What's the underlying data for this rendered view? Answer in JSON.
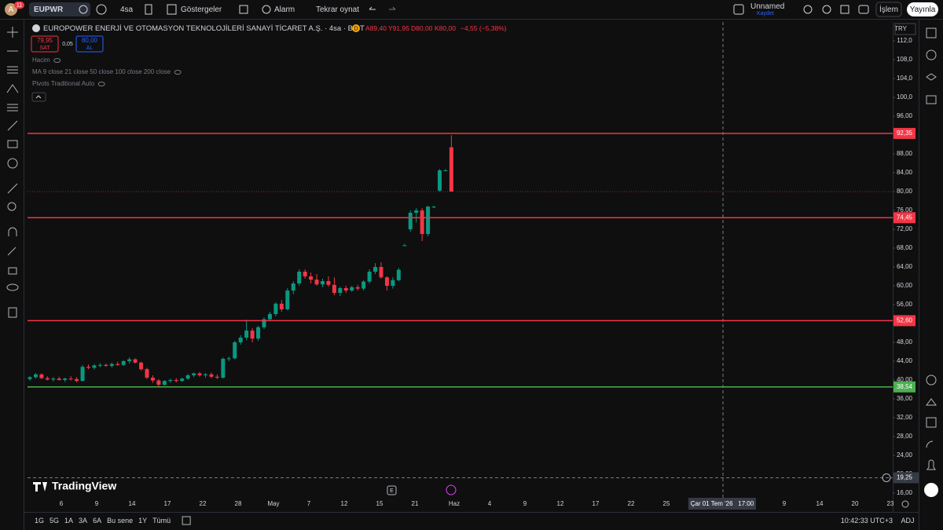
{
  "topbar": {
    "avatar": "A",
    "badge": "11",
    "symbol": "EUPWR",
    "interval": "4sa",
    "indicators": "Göstergeler",
    "alert": "Alarm",
    "replay": "Tekrar oynat",
    "layout_name": "Unnamed",
    "layout_status": "Kaydet",
    "trade": "İşlem",
    "publish": "Yayınla"
  },
  "legend": {
    "title": "EUROPOWER ENERJİ VE OTOMASYON TEKNOLOJİLERİ SANAYİ TİCARET A.Ş. · 4sa · BIST",
    "marker": "D",
    "open": "A89,40",
    "high": "Y91,95",
    "low": "D80,00",
    "close": "K80,00",
    "change": "−4,55 (−5,38%)",
    "sell_price": "79,95",
    "sell": "SAT",
    "spread": "0,05",
    "buy_price": "80,00",
    "buy": "AL",
    "indicators": [
      "Hacim",
      "MA 9 close 21 close 50 close 100 close 200 close",
      "Pivots Traditional Auto"
    ]
  },
  "chart_data": {
    "type": "candlestick",
    "currency": "TRY",
    "up_color": "#089981",
    "down_color": "#f23645",
    "open": [
      40.2,
      40.6,
      41.2,
      40.4,
      40.1,
      40.3,
      40.0,
      40.3,
      40.2,
      39.8,
      42.8,
      42.6,
      43.1,
      43.2,
      43.0,
      43.4,
      43.2,
      44.0,
      44.4,
      43.7,
      42.3,
      40.5,
      39.9,
      39.0,
      39.8,
      40.0,
      39.8,
      40.3,
      41.0,
      41.4,
      41.0,
      41.2,
      40.7,
      40.5,
      44.5,
      44.6,
      48.0,
      49.0,
      50.5,
      48.8,
      51.2,
      52.9,
      54.0,
      56.2,
      55.0,
      59.0,
      60.5,
      63.0,
      62.0,
      61.3,
      60.3,
      61.0,
      60.2,
      58.5,
      59.5,
      59.0,
      59.7,
      59.4,
      60.9,
      63.0,
      64.0,
      61.8,
      60.0,
      61.2,
      68.6,
      72.0,
      75.5,
      76.0,
      71.0,
      76.8,
      80.2,
      84.5,
      89.4
    ],
    "high": [
      40.8,
      41.5,
      41.4,
      40.8,
      40.6,
      40.7,
      40.5,
      40.8,
      40.6,
      43.2,
      43.3,
      43.4,
      43.6,
      43.5,
      43.7,
      43.9,
      44.2,
      44.8,
      44.6,
      43.9,
      42.6,
      41.0,
      40.2,
      40.0,
      40.3,
      40.4,
      40.5,
      41.3,
      41.6,
      41.7,
      41.5,
      41.6,
      41.2,
      44.8,
      45.0,
      48.3,
      49.5,
      52.8,
      51.0,
      51.5,
      53.3,
      54.5,
      56.5,
      57.0,
      59.5,
      61.0,
      63.5,
      63.5,
      62.8,
      62.5,
      61.5,
      62.0,
      61.8,
      59.8,
      60.0,
      60.0,
      60.2,
      61.2,
      63.5,
      64.8,
      65.0,
      62.0,
      61.8,
      63.8,
      68.9,
      76.0,
      76.5,
      76.5,
      77.0,
      77.0,
      84.8,
      84.8,
      91.95
    ],
    "low": [
      39.8,
      40.3,
      40.2,
      39.9,
      39.7,
      39.9,
      39.6,
      39.9,
      39.5,
      39.7,
      42.3,
      42.2,
      42.7,
      42.8,
      42.6,
      43.0,
      43.0,
      43.5,
      43.5,
      42.0,
      40.2,
      39.4,
      38.6,
      38.8,
      39.4,
      39.5,
      39.6,
      40.1,
      40.6,
      40.7,
      40.5,
      40.4,
      40.2,
      40.3,
      44.0,
      44.4,
      47.5,
      48.5,
      48.0,
      48.3,
      50.8,
      52.6,
      53.5,
      54.5,
      54.8,
      58.2,
      60.0,
      61.5,
      60.5,
      60.0,
      59.7,
      59.8,
      58.0,
      57.8,
      58.5,
      58.7,
      59.0,
      59.0,
      60.5,
      62.5,
      61.5,
      59.0,
      59.4,
      61.0,
      68.4,
      71.5,
      73.5,
      69.5,
      70.5,
      76.5,
      80.0,
      84.3,
      80.0
    ],
    "close": [
      40.6,
      41.2,
      40.4,
      40.1,
      40.3,
      40.0,
      40.3,
      40.2,
      39.8,
      42.8,
      42.6,
      43.1,
      43.2,
      43.0,
      43.4,
      43.2,
      44.0,
      44.4,
      43.7,
      42.3,
      40.5,
      39.9,
      39.0,
      39.8,
      40.0,
      39.8,
      40.3,
      41.0,
      41.4,
      41.0,
      41.2,
      40.7,
      40.5,
      44.5,
      44.6,
      48.0,
      49.0,
      50.5,
      48.8,
      51.2,
      52.9,
      54.0,
      56.2,
      55.0,
      59.0,
      60.5,
      63.0,
      62.0,
      61.3,
      60.3,
      61.0,
      60.2,
      58.5,
      59.5,
      59.0,
      59.7,
      59.4,
      60.9,
      63.0,
      64.0,
      61.8,
      60.0,
      61.2,
      63.4,
      68.6,
      75.5,
      76.0,
      71.0,
      76.8,
      76.8,
      84.5,
      84.5,
      80.0
    ],
    "ylim": [
      15.33,
      116
    ],
    "yticks": [
      {
        "value": 112,
        "label": "112,0"
      },
      {
        "value": 108,
        "label": "108,0"
      },
      {
        "value": 104,
        "label": "104,0"
      },
      {
        "value": 100,
        "label": "100,0"
      },
      {
        "value": 96,
        "label": "96,00"
      },
      {
        "value": 88,
        "label": "88,00"
      },
      {
        "value": 84,
        "label": "84,00"
      },
      {
        "value": 80,
        "label": "80,00"
      },
      {
        "value": 76,
        "label": "76,00"
      },
      {
        "value": 72,
        "label": "72,00"
      },
      {
        "value": 68,
        "label": "68,00"
      },
      {
        "value": 64,
        "label": "64,00"
      },
      {
        "value": 60,
        "label": "60,00"
      },
      {
        "value": 56,
        "label": "56,00"
      },
      {
        "value": 48,
        "label": "48,00"
      },
      {
        "value": 44,
        "label": "44,00"
      },
      {
        "value": 40,
        "label": "40,00"
      },
      {
        "value": 36,
        "label": "36,00"
      },
      {
        "value": 32,
        "label": "32,00"
      },
      {
        "value": 28,
        "label": "28,00"
      },
      {
        "value": 24,
        "label": "24,00"
      },
      {
        "value": 20,
        "label": "20,00"
      },
      {
        "value": 16,
        "label": "16,00"
      }
    ],
    "levels": [
      {
        "value": 92.35,
        "label": "92,35",
        "color": "#f23645"
      },
      {
        "value": 74.45,
        "label": "74,45",
        "color": "#f23645"
      },
      {
        "value": 52.6,
        "label": "52,60",
        "color": "#f23645"
      },
      {
        "value": 38.54,
        "label": "38,54",
        "color": "#4caf50"
      }
    ],
    "x_labels": [
      "6",
      "9",
      "14",
      "17",
      "22",
      "28",
      "May",
      "7",
      "12",
      "15",
      "21",
      "Haz",
      "4",
      "9",
      "12",
      "17",
      "22",
      "25",
      "9",
      "14",
      "20",
      "23"
    ],
    "crosshair": {
      "x_label": "Çar 01 Tem '26   17:00",
      "price": {
        "value": 19.25,
        "label": "19,25"
      }
    },
    "event_marker": "E",
    "watermark": "TradingView"
  },
  "bottombar": {
    "ranges": [
      "1G",
      "5G",
      "1A",
      "3A",
      "6A",
      "Bu sene",
      "1Y",
      "Tümü"
    ],
    "clock": "10:42:33 UTC+3",
    "adj": "ADJ"
  }
}
